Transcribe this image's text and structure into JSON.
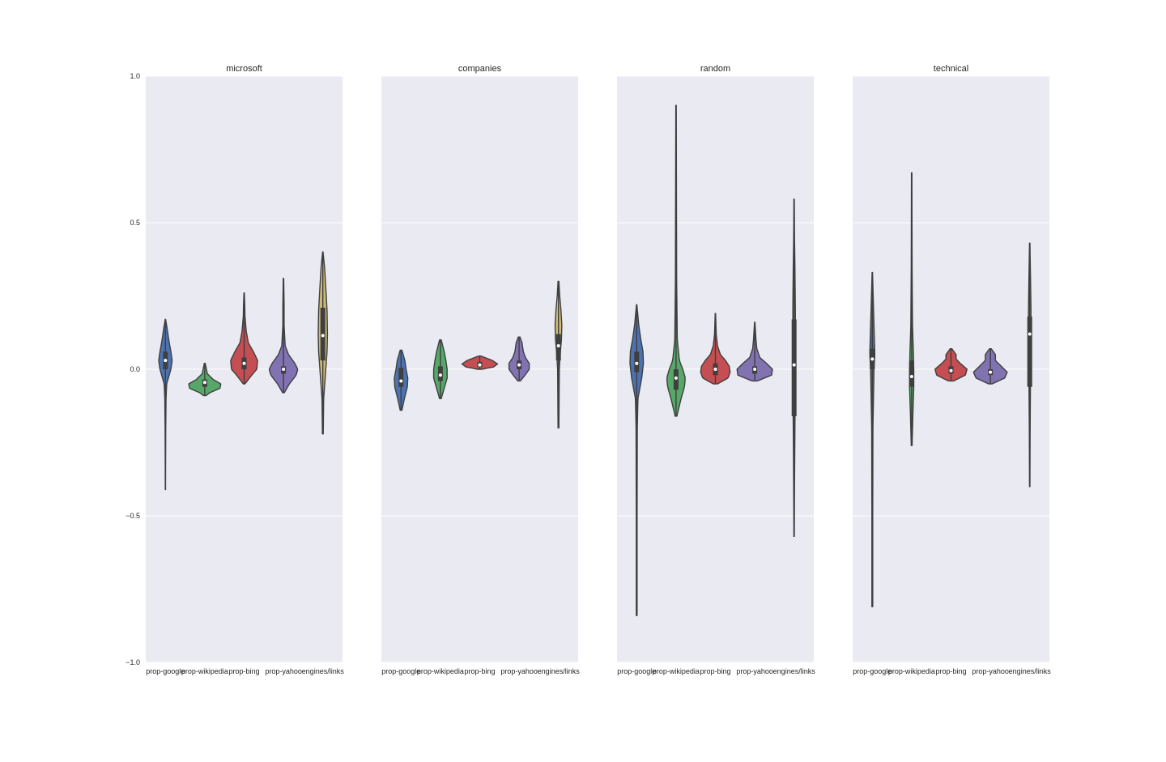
{
  "chart_data": {
    "type": "violin",
    "ylim": [
      -1.0,
      1.0
    ],
    "yticks": [
      1.0,
      0.5,
      0.0,
      -0.5,
      -1.0
    ],
    "ytick_labels": [
      "1.0",
      "0.5",
      "0.0",
      "−0.5",
      "−1.0"
    ],
    "grid": true,
    "background_color": "#EAEAF2",
    "grid_color": "#FFFFFF",
    "categories": [
      "prop-google",
      "prop-wikipedia",
      "prop-bing",
      "prop-yahoo",
      "engines/links"
    ],
    "colors": [
      "#4C72B0",
      "#55A868",
      "#C44E52",
      "#8172B2",
      "#CCB974"
    ],
    "panels": [
      {
        "title": "microsoft",
        "violins": [
          {
            "min": -0.41,
            "max": 0.17,
            "median": 0.03,
            "q1": 0.0,
            "q3": 0.06,
            "shape": [
              [
                -0.41,
                0.003
              ],
              [
                -0.3,
                0.005
              ],
              [
                -0.2,
                0.008
              ],
              [
                -0.1,
                0.015
              ],
              [
                -0.05,
                0.03
              ],
              [
                0.0,
                0.13
              ],
              [
                0.03,
                0.16
              ],
              [
                0.06,
                0.13
              ],
              [
                0.1,
                0.08
              ],
              [
                0.14,
                0.04
              ],
              [
                0.17,
                0.005
              ]
            ]
          },
          {
            "min": -0.09,
            "max": 0.02,
            "median": -0.045,
            "q1": -0.06,
            "q3": -0.035,
            "shape": [
              [
                -0.09,
                0.03
              ],
              [
                -0.08,
                0.12
              ],
              [
                -0.065,
                0.36
              ],
              [
                -0.05,
                0.38
              ],
              [
                -0.035,
                0.2
              ],
              [
                -0.015,
                0.06
              ],
              [
                0.0,
                0.04
              ],
              [
                0.02,
                0.01
              ]
            ]
          },
          {
            "min": -0.05,
            "max": 0.26,
            "median": 0.02,
            "q1": 0.0,
            "q3": 0.04,
            "shape": [
              [
                -0.05,
                0.02
              ],
              [
                -0.02,
                0.18
              ],
              [
                0.0,
                0.3
              ],
              [
                0.03,
                0.32
              ],
              [
                0.06,
                0.22
              ],
              [
                0.09,
                0.1
              ],
              [
                0.13,
                0.05
              ],
              [
                0.18,
                0.02
              ],
              [
                0.22,
                0.015
              ],
              [
                0.26,
                0.005
              ]
            ]
          },
          {
            "min": -0.08,
            "max": 0.31,
            "median": 0.0,
            "q1": -0.015,
            "q3": 0.01,
            "shape": [
              [
                -0.08,
                0.02
              ],
              [
                -0.05,
                0.14
              ],
              [
                -0.02,
                0.3
              ],
              [
                0.0,
                0.34
              ],
              [
                0.02,
                0.27
              ],
              [
                0.05,
                0.12
              ],
              [
                0.08,
                0.04
              ],
              [
                0.15,
                0.015
              ],
              [
                0.22,
                0.015
              ],
              [
                0.31,
                0.005
              ]
            ]
          },
          {
            "min": -0.22,
            "max": 0.4,
            "median": 0.115,
            "q1": 0.03,
            "q3": 0.21,
            "shape": [
              [
                -0.22,
                0.01
              ],
              [
                -0.1,
                0.02
              ],
              [
                0.0,
                0.07
              ],
              [
                0.06,
                0.1
              ],
              [
                0.12,
                0.11
              ],
              [
                0.2,
                0.1
              ],
              [
                0.28,
                0.07
              ],
              [
                0.35,
                0.04
              ],
              [
                0.4,
                0.005
              ]
            ]
          }
        ]
      },
      {
        "title": "companies",
        "violins": [
          {
            "min": -0.14,
            "max": 0.065,
            "median": -0.04,
            "q1": -0.06,
            "q3": 0.005,
            "shape": [
              [
                -0.14,
                0.02
              ],
              [
                -0.1,
                0.08
              ],
              [
                -0.06,
                0.15
              ],
              [
                -0.03,
                0.16
              ],
              [
                0.0,
                0.12
              ],
              [
                0.03,
                0.09
              ],
              [
                0.065,
                0.02
              ]
            ]
          },
          {
            "min": -0.1,
            "max": 0.1,
            "median": -0.02,
            "q1": -0.04,
            "q3": 0.01,
            "shape": [
              [
                -0.1,
                0.02
              ],
              [
                -0.06,
                0.1
              ],
              [
                -0.03,
                0.16
              ],
              [
                0.0,
                0.16
              ],
              [
                0.03,
                0.13
              ],
              [
                0.06,
                0.09
              ],
              [
                0.1,
                0.02
              ]
            ]
          },
          {
            "min": 0.0,
            "max": 0.045,
            "median": 0.015,
            "q1": 0.008,
            "q3": 0.025,
            "shape": [
              [
                0.0,
                0.05
              ],
              [
                0.008,
                0.33
              ],
              [
                0.018,
                0.42
              ],
              [
                0.03,
                0.3
              ],
              [
                0.04,
                0.12
              ],
              [
                0.045,
                0.03
              ]
            ]
          },
          {
            "min": -0.04,
            "max": 0.11,
            "median": 0.015,
            "q1": 0.0,
            "q3": 0.03,
            "shape": [
              [
                -0.04,
                0.03
              ],
              [
                -0.02,
                0.14
              ],
              [
                0.0,
                0.24
              ],
              [
                0.02,
                0.24
              ],
              [
                0.04,
                0.15
              ],
              [
                0.06,
                0.1
              ],
              [
                0.09,
                0.07
              ],
              [
                0.11,
                0.02
              ]
            ]
          },
          {
            "min": -0.2,
            "max": 0.3,
            "median": 0.08,
            "q1": 0.03,
            "q3": 0.12,
            "shape": [
              [
                -0.2,
                0.01
              ],
              [
                -0.1,
                0.015
              ],
              [
                0.0,
                0.02
              ],
              [
                0.05,
                0.04
              ],
              [
                0.1,
                0.07
              ],
              [
                0.15,
                0.08
              ],
              [
                0.2,
                0.06
              ],
              [
                0.25,
                0.03
              ],
              [
                0.3,
                0.01
              ]
            ]
          }
        ]
      },
      {
        "title": "random",
        "violins": [
          {
            "min": -0.84,
            "max": 0.22,
            "median": 0.02,
            "q1": -0.01,
            "q3": 0.06,
            "shape": [
              [
                -0.84,
                0.01
              ],
              [
                -0.5,
                0.01
              ],
              [
                -0.2,
                0.015
              ],
              [
                -0.1,
                0.03
              ],
              [
                -0.03,
                0.12
              ],
              [
                0.02,
                0.16
              ],
              [
                0.06,
                0.15
              ],
              [
                0.1,
                0.1
              ],
              [
                0.15,
                0.05
              ],
              [
                0.22,
                0.005
              ]
            ]
          },
          {
            "min": -0.16,
            "max": 0.9,
            "median": -0.03,
            "q1": -0.07,
            "q3": 0.0,
            "shape": [
              [
                -0.16,
                0.02
              ],
              [
                -0.1,
                0.12
              ],
              [
                -0.06,
                0.2
              ],
              [
                -0.03,
                0.22
              ],
              [
                0.0,
                0.16
              ],
              [
                0.03,
                0.08
              ],
              [
                0.1,
                0.03
              ],
              [
                0.3,
                0.015
              ],
              [
                0.6,
                0.01
              ],
              [
                0.9,
                0.005
              ]
            ]
          },
          {
            "min": -0.05,
            "max": 0.19,
            "median": 0.0,
            "q1": -0.02,
            "q3": 0.02,
            "shape": [
              [
                -0.05,
                0.05
              ],
              [
                -0.03,
                0.3
              ],
              [
                -0.01,
                0.35
              ],
              [
                0.01,
                0.33
              ],
              [
                0.03,
                0.24
              ],
              [
                0.05,
                0.12
              ],
              [
                0.08,
                0.05
              ],
              [
                0.12,
                0.02
              ],
              [
                0.19,
                0.005
              ]
            ]
          },
          {
            "min": -0.04,
            "max": 0.16,
            "median": 0.0,
            "q1": -0.015,
            "q3": 0.01,
            "shape": [
              [
                -0.04,
                0.06
              ],
              [
                -0.02,
                0.4
              ],
              [
                0.0,
                0.42
              ],
              [
                0.02,
                0.28
              ],
              [
                0.04,
                0.12
              ],
              [
                0.07,
                0.05
              ],
              [
                0.1,
                0.03
              ],
              [
                0.16,
                0.005
              ]
            ]
          },
          {
            "min": -0.57,
            "max": 0.58,
            "median": 0.015,
            "q1": -0.16,
            "q3": 0.17,
            "shape": [
              [
                -0.57,
                0.005
              ],
              [
                -0.4,
                0.01
              ],
              [
                -0.2,
                0.02
              ],
              [
                0.0,
                0.03
              ],
              [
                0.2,
                0.03
              ],
              [
                0.35,
                0.02
              ],
              [
                0.45,
                0.01
              ],
              [
                0.58,
                0.005
              ]
            ]
          }
        ]
      },
      {
        "title": "technical",
        "violins": [
          {
            "min": -0.81,
            "max": 0.33,
            "median": 0.035,
            "q1": 0.0,
            "q3": 0.07,
            "shape": [
              [
                -0.81,
                0.01
              ],
              [
                -0.5,
                0.01
              ],
              [
                -0.2,
                0.015
              ],
              [
                0.0,
                0.04
              ],
              [
                0.05,
                0.06
              ],
              [
                0.1,
                0.05
              ],
              [
                0.2,
                0.03
              ],
              [
                0.33,
                0.005
              ]
            ]
          },
          {
            "min": -0.26,
            "max": 0.67,
            "median": -0.025,
            "q1": -0.06,
            "q3": 0.03,
            "shape": [
              [
                -0.26,
                0.01
              ],
              [
                -0.15,
                0.03
              ],
              [
                -0.06,
                0.05
              ],
              [
                0.0,
                0.05
              ],
              [
                0.06,
                0.04
              ],
              [
                0.15,
                0.02
              ],
              [
                0.35,
                0.01
              ],
              [
                0.67,
                0.005
              ]
            ]
          },
          {
            "min": -0.04,
            "max": 0.07,
            "median": -0.005,
            "q1": -0.015,
            "q3": 0.01,
            "shape": [
              [
                -0.04,
                0.06
              ],
              [
                -0.02,
                0.34
              ],
              [
                0.0,
                0.38
              ],
              [
                0.02,
                0.22
              ],
              [
                0.035,
                0.12
              ],
              [
                0.05,
                0.12
              ],
              [
                0.07,
                0.02
              ]
            ]
          },
          {
            "min": -0.05,
            "max": 0.07,
            "median": -0.01,
            "q1": -0.02,
            "q3": 0.0,
            "shape": [
              [
                -0.05,
                0.04
              ],
              [
                -0.03,
                0.34
              ],
              [
                -0.01,
                0.4
              ],
              [
                0.01,
                0.26
              ],
              [
                0.03,
                0.12
              ],
              [
                0.05,
                0.12
              ],
              [
                0.07,
                0.02
              ]
            ]
          },
          {
            "min": -0.4,
            "max": 0.43,
            "median": 0.12,
            "q1": -0.06,
            "q3": 0.18,
            "shape": [
              [
                -0.4,
                0.005
              ],
              [
                -0.2,
                0.01
              ],
              [
                0.0,
                0.02
              ],
              [
                0.12,
                0.03
              ],
              [
                0.2,
                0.03
              ],
              [
                0.3,
                0.02
              ],
              [
                0.43,
                0.005
              ]
            ]
          }
        ]
      }
    ]
  }
}
